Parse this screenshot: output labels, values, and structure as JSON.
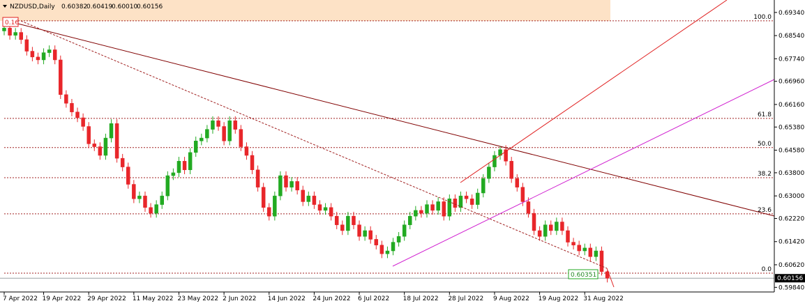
{
  "chart_data": {
    "type": "candlestick",
    "header": {
      "symbol": "NZDUSD,Daily",
      "ohlc_labels": [
        "0.60382",
        "0.60419",
        "0.60010",
        "0.60156"
      ]
    },
    "categories": [
      "7 Apr 2022",
      null,
      null,
      null,
      null,
      null,
      null,
      "19 Apr 2022",
      null,
      null,
      null,
      null,
      null,
      null,
      null,
      "29 Apr 2022",
      null,
      null,
      null,
      null,
      null,
      null,
      null,
      "11 May 2022",
      null,
      null,
      null,
      null,
      null,
      null,
      null,
      "23 May 2022",
      null,
      null,
      null,
      null,
      null,
      null,
      null,
      "2 Jun 2022",
      null,
      null,
      null,
      null,
      null,
      null,
      null,
      "14 Jun 2022",
      null,
      null,
      null,
      null,
      null,
      null,
      null,
      "24 Jun 2022",
      null,
      null,
      null,
      null,
      null,
      null,
      null,
      "6 Jul 2022",
      null,
      null,
      null,
      null,
      null,
      null,
      null,
      "18 Jul 2022",
      null,
      null,
      null,
      null,
      null,
      null,
      null,
      "28 Jul 2022",
      null,
      null,
      null,
      null,
      null,
      null,
      null,
      "9 Aug 2022",
      null,
      null,
      null,
      null,
      null,
      null,
      null,
      "19 Aug 2022",
      null,
      null,
      null,
      null,
      null,
      null,
      null,
      "31 Aug 2022",
      null,
      null,
      null,
      null
    ],
    "open": [
      0.687,
      0.688,
      0.6855,
      0.6865,
      0.684,
      0.68,
      0.678,
      0.677,
      0.6795,
      0.6805,
      0.677,
      0.665,
      0.662,
      0.659,
      0.657,
      0.654,
      0.648,
      0.647,
      0.644,
      0.65,
      0.655,
      0.643,
      0.64,
      0.634,
      0.629,
      0.63,
      0.626,
      0.624,
      0.627,
      0.63,
      0.637,
      0.638,
      0.642,
      0.639,
      0.645,
      0.649,
      0.65,
      0.653,
      0.656,
      0.654,
      0.649,
      0.656,
      0.653,
      0.647,
      0.644,
      0.639,
      0.633,
      0.626,
      0.623,
      0.63,
      0.637,
      0.633,
      0.635,
      0.632,
      0.628,
      0.63,
      0.627,
      0.625,
      0.626,
      0.623,
      0.62,
      0.618,
      0.623,
      0.62,
      0.616,
      0.618,
      0.615,
      0.613,
      0.61,
      0.611,
      0.614,
      0.616,
      0.62,
      0.623,
      0.625,
      0.624,
      0.627,
      0.625,
      0.628,
      0.623,
      0.629,
      0.626,
      0.63,
      0.629,
      0.627,
      0.631,
      0.636,
      0.64,
      0.644,
      0.646,
      0.642,
      0.636,
      0.633,
      0.628,
      0.624,
      0.618,
      0.616,
      0.62,
      0.618,
      0.621,
      0.618,
      0.614,
      0.613,
      0.611,
      0.612,
      0.609,
      0.611,
      0.60382
    ],
    "high": [
      0.6895,
      0.6895,
      0.688,
      0.688,
      0.6855,
      0.6815,
      0.6795,
      0.681,
      0.682,
      0.682,
      0.6785,
      0.6665,
      0.6635,
      0.6605,
      0.6585,
      0.6555,
      0.6495,
      0.6485,
      0.6515,
      0.6565,
      0.6565,
      0.6445,
      0.6415,
      0.6355,
      0.6315,
      0.6315,
      0.6275,
      0.6285,
      0.6315,
      0.6385,
      0.6395,
      0.6435,
      0.6435,
      0.6465,
      0.6505,
      0.6515,
      0.6545,
      0.6575,
      0.6575,
      0.6555,
      0.6575,
      0.6575,
      0.6545,
      0.6485,
      0.6455,
      0.6405,
      0.6345,
      0.6275,
      0.6315,
      0.6385,
      0.6385,
      0.6365,
      0.6365,
      0.6335,
      0.6315,
      0.6315,
      0.6285,
      0.6275,
      0.6275,
      0.6245,
      0.6215,
      0.6245,
      0.6245,
      0.6215,
      0.6195,
      0.6195,
      0.6165,
      0.6145,
      0.6125,
      0.6155,
      0.6175,
      0.6215,
      0.6245,
      0.6265,
      0.6265,
      0.6285,
      0.6285,
      0.6295,
      0.6295,
      0.6305,
      0.6305,
      0.6315,
      0.6315,
      0.6305,
      0.6325,
      0.6375,
      0.6415,
      0.6455,
      0.647,
      0.6475,
      0.6435,
      0.6375,
      0.6345,
      0.6295,
      0.6255,
      0.6195,
      0.6215,
      0.6215,
      0.6225,
      0.6225,
      0.6195,
      0.6155,
      0.6145,
      0.6135,
      0.6135,
      0.6125,
      0.6125,
      0.60419
    ],
    "low": [
      0.6855,
      0.684,
      0.684,
      0.6825,
      0.6785,
      0.6765,
      0.6755,
      0.6755,
      0.678,
      0.6755,
      0.6635,
      0.6605,
      0.6575,
      0.6555,
      0.6525,
      0.6465,
      0.6455,
      0.6425,
      0.6425,
      0.6485,
      0.6415,
      0.6385,
      0.6325,
      0.6275,
      0.6275,
      0.6245,
      0.6225,
      0.6225,
      0.6255,
      0.6285,
      0.6355,
      0.6365,
      0.6375,
      0.6375,
      0.6435,
      0.6475,
      0.6485,
      0.6515,
      0.6525,
      0.6475,
      0.6475,
      0.6515,
      0.6455,
      0.6425,
      0.6375,
      0.6315,
      0.6245,
      0.6215,
      0.6215,
      0.6285,
      0.6315,
      0.6315,
      0.6305,
      0.6265,
      0.6265,
      0.6255,
      0.6235,
      0.6235,
      0.6215,
      0.6185,
      0.6165,
      0.6165,
      0.6185,
      0.6145,
      0.6145,
      0.6135,
      0.6115,
      0.6085,
      0.6085,
      0.6095,
      0.6125,
      0.6145,
      0.6185,
      0.6215,
      0.6225,
      0.6225,
      0.6235,
      0.6235,
      0.6215,
      0.6215,
      0.6245,
      0.6245,
      0.6275,
      0.6255,
      0.6255,
      0.6295,
      0.6345,
      0.6385,
      0.6425,
      0.6405,
      0.6345,
      0.6315,
      0.6265,
      0.6225,
      0.6165,
      0.6145,
      0.6145,
      0.6165,
      0.6165,
      0.6165,
      0.6125,
      0.6115,
      0.6095,
      0.6095,
      0.6075,
      0.6075,
      0.6025,
      0.6001
    ],
    "close": [
      0.688,
      0.6855,
      0.6865,
      0.684,
      0.68,
      0.678,
      0.677,
      0.6795,
      0.6805,
      0.677,
      0.665,
      0.662,
      0.659,
      0.657,
      0.654,
      0.648,
      0.647,
      0.644,
      0.65,
      0.655,
      0.643,
      0.64,
      0.634,
      0.629,
      0.63,
      0.626,
      0.624,
      0.627,
      0.63,
      0.637,
      0.638,
      0.642,
      0.639,
      0.645,
      0.649,
      0.65,
      0.653,
      0.656,
      0.654,
      0.649,
      0.656,
      0.653,
      0.647,
      0.644,
      0.639,
      0.633,
      0.626,
      0.623,
      0.63,
      0.637,
      0.633,
      0.635,
      0.632,
      0.628,
      0.63,
      0.627,
      0.625,
      0.626,
      0.623,
      0.62,
      0.618,
      0.623,
      0.62,
      0.616,
      0.618,
      0.615,
      0.613,
      0.61,
      0.611,
      0.614,
      0.616,
      0.62,
      0.623,
      0.625,
      0.624,
      0.627,
      0.625,
      0.628,
      0.623,
      0.629,
      0.626,
      0.63,
      0.629,
      0.627,
      0.631,
      0.636,
      0.64,
      0.644,
      0.646,
      0.642,
      0.636,
      0.633,
      0.628,
      0.624,
      0.618,
      0.616,
      0.62,
      0.618,
      0.621,
      0.618,
      0.614,
      0.613,
      0.611,
      0.612,
      0.609,
      0.611,
      0.60382,
      0.60156
    ],
    "up_color": "#22aa22",
    "down_color": "#e8262a",
    "ylim": [
      0.5968,
      0.6977
    ],
    "yticks": [
      {
        "value": 0.6934,
        "label": "0.69340"
      },
      {
        "value": 0.6854,
        "label": "0.68540"
      },
      {
        "value": 0.6774,
        "label": "0.67740"
      },
      {
        "value": 0.6696,
        "label": "0.66960"
      },
      {
        "value": 0.6616,
        "label": "0.66160"
      },
      {
        "value": 0.6538,
        "label": "0.65380"
      },
      {
        "value": 0.6458,
        "label": "0.64580"
      },
      {
        "value": 0.638,
        "label": "0.63800"
      },
      {
        "value": 0.63,
        "label": "0.63000"
      },
      {
        "value": 0.6222,
        "label": "0.62220"
      },
      {
        "value": 0.6142,
        "label": "0.61420"
      },
      {
        "value": 0.6062,
        "label": "0.60620"
      },
      {
        "value": 0.5984,
        "label": "0.59840"
      }
    ],
    "current_price": 0.60156,
    "fib_levels": [
      {
        "value": 0.6905,
        "label": "100.0"
      },
      {
        "value": 0.6568,
        "label": "61.8"
      },
      {
        "value": 0.6467,
        "label": "50.0"
      },
      {
        "value": 0.6363,
        "label": "38.2"
      },
      {
        "value": 0.6238,
        "label": "23.6"
      },
      {
        "value": 0.6033,
        "label": "0.0"
      }
    ],
    "annotations": [
      "0.16",
      "0.60351"
    ]
  }
}
